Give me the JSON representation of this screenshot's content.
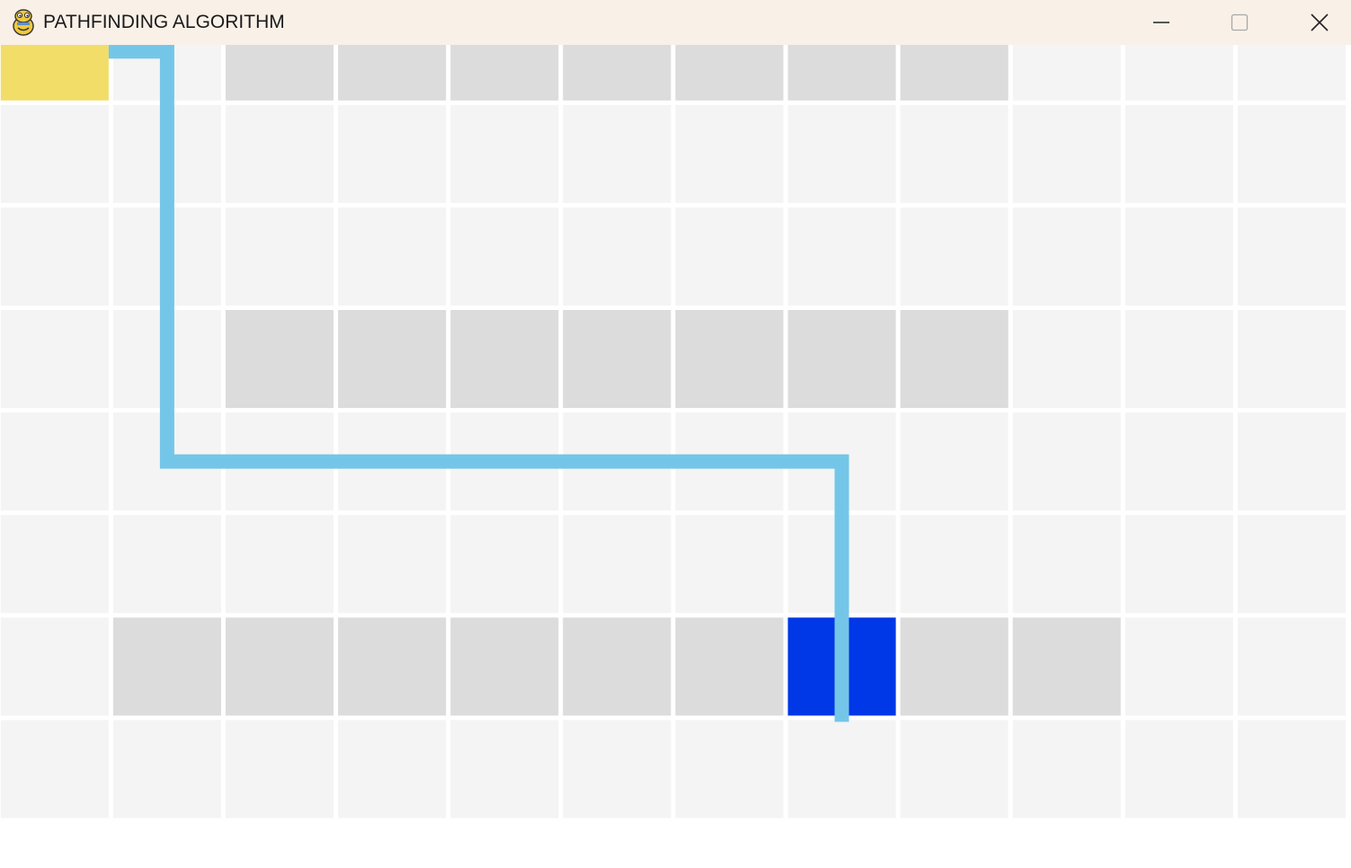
{
  "window": {
    "title": "PATHFINDING ALGORITHM",
    "app_icon": "pygame-snake-icon",
    "controls": {
      "minimize_icon": "minimize-icon",
      "maximize_icon": "maximize-icon",
      "close_icon": "close-icon"
    }
  },
  "grid": {
    "columns": 12,
    "rows": 8,
    "colors": {
      "empty": "#f4f4f4",
      "wall": "#dcdcdc",
      "start": "#f2dd69",
      "goal": "#0037e6",
      "path": "#74c6e8",
      "grid_line": "#ffffff"
    },
    "start": {
      "row": 0,
      "col": 0
    },
    "goal": {
      "row": 6,
      "col": 7
    },
    "walls": [
      {
        "row": 0,
        "col": 2
      },
      {
        "row": 0,
        "col": 3
      },
      {
        "row": 0,
        "col": 4
      },
      {
        "row": 0,
        "col": 5
      },
      {
        "row": 0,
        "col": 6
      },
      {
        "row": 0,
        "col": 7
      },
      {
        "row": 0,
        "col": 8
      },
      {
        "row": 3,
        "col": 2
      },
      {
        "row": 3,
        "col": 3
      },
      {
        "row": 3,
        "col": 4
      },
      {
        "row": 3,
        "col": 5
      },
      {
        "row": 3,
        "col": 6
      },
      {
        "row": 3,
        "col": 7
      },
      {
        "row": 3,
        "col": 8
      },
      {
        "row": 6,
        "col": 1
      },
      {
        "row": 6,
        "col": 2
      },
      {
        "row": 6,
        "col": 3
      },
      {
        "row": 6,
        "col": 4
      },
      {
        "row": 6,
        "col": 5
      },
      {
        "row": 6,
        "col": 6
      },
      {
        "row": 6,
        "col": 8
      },
      {
        "row": 6,
        "col": 9
      }
    ],
    "path": [
      {
        "row": 0,
        "col": 0
      },
      {
        "row": 0,
        "col": 1
      },
      {
        "row": 1,
        "col": 1
      },
      {
        "row": 2,
        "col": 1
      },
      {
        "row": 3,
        "col": 1
      },
      {
        "row": 4,
        "col": 1
      },
      {
        "row": 4,
        "col": 2
      },
      {
        "row": 4,
        "col": 3
      },
      {
        "row": 4,
        "col": 4
      },
      {
        "row": 4,
        "col": 5
      },
      {
        "row": 4,
        "col": 6
      },
      {
        "row": 4,
        "col": 7
      },
      {
        "row": 5,
        "col": 7
      },
      {
        "row": 6,
        "col": 7
      }
    ]
  }
}
